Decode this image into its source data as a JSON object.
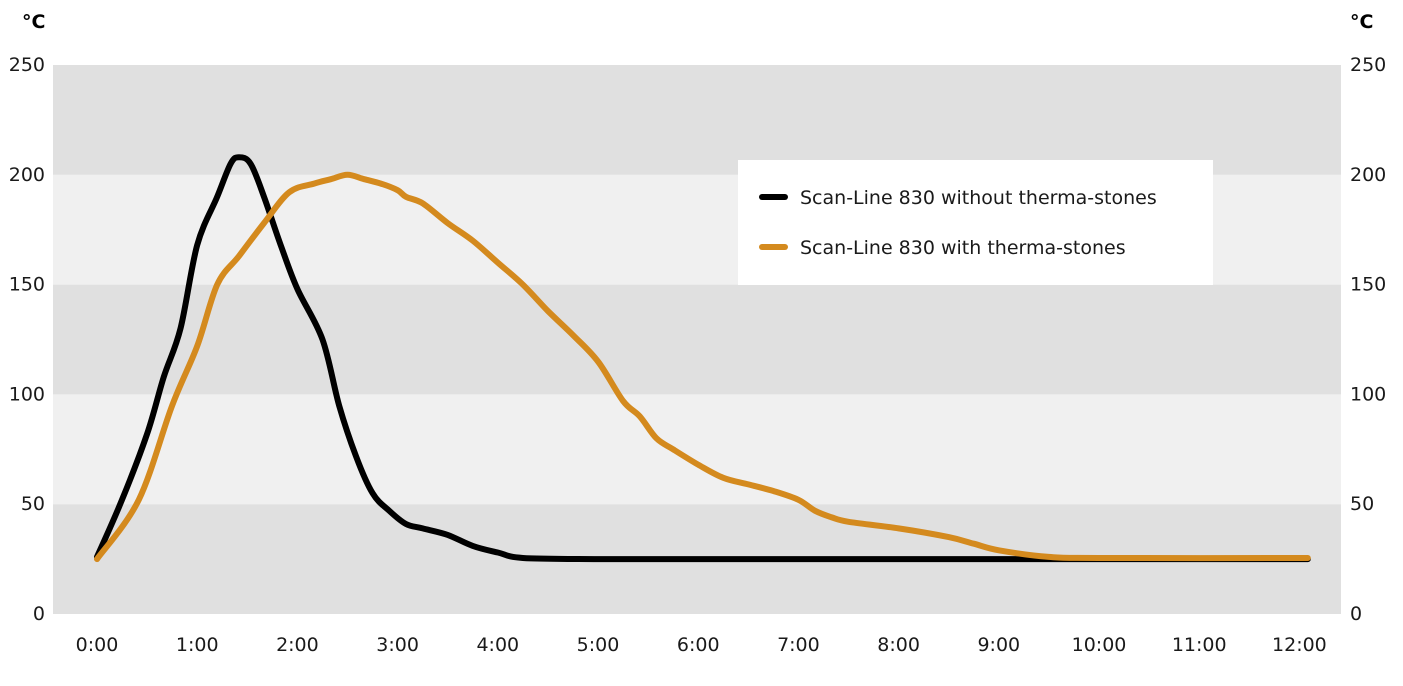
{
  "chart_data": {
    "type": "line",
    "y_unit_left": "°C",
    "y_unit_right": "°C",
    "ylim": [
      0,
      250
    ],
    "y_ticks": [
      "0",
      "50",
      "100",
      "150",
      "200",
      "250"
    ],
    "xlim": [
      "0:00",
      "12:00"
    ],
    "x_ticks": [
      "0:00",
      "1:00",
      "2:00",
      "3:00",
      "4:00",
      "5:00",
      "6:00",
      "7:00",
      "8:00",
      "9:00",
      "10:00",
      "11:00",
      "12:00"
    ],
    "band_colors": [
      "#e0e0e0",
      "#f0f0f0"
    ],
    "legend_position": "top-right",
    "series": [
      {
        "name": "Scan-Line 830 without therma-stones",
        "color": "#000000",
        "points": [
          [
            "0:00",
            26
          ],
          [
            "0:15",
            52
          ],
          [
            "0:30",
            82
          ],
          [
            "0:40",
            108
          ],
          [
            "0:50",
            130
          ],
          [
            "1:00",
            168
          ],
          [
            "1:12",
            190
          ],
          [
            "1:20",
            205
          ],
          [
            "1:25",
            208
          ],
          [
            "1:32",
            205
          ],
          [
            "1:40",
            190
          ],
          [
            "1:50",
            168
          ],
          [
            "2:00",
            148
          ],
          [
            "2:15",
            125
          ],
          [
            "2:25",
            95
          ],
          [
            "2:35",
            72
          ],
          [
            "2:45",
            55
          ],
          [
            "2:55",
            47
          ],
          [
            "3:05",
            41
          ],
          [
            "3:15",
            39
          ],
          [
            "3:30",
            36
          ],
          [
            "3:45",
            31
          ],
          [
            "4:00",
            28
          ],
          [
            "4:15",
            25.5
          ],
          [
            "5:00",
            25
          ],
          [
            "6:00",
            25
          ],
          [
            "8:00",
            25
          ],
          [
            "10:00",
            25
          ],
          [
            "12:05",
            25
          ]
        ]
      },
      {
        "name": "Scan-Line 830 with therma-stones",
        "color": "#d48a1e",
        "points": [
          [
            "0:00",
            25
          ],
          [
            "0:25",
            52
          ],
          [
            "0:45",
            95
          ],
          [
            "1:00",
            122
          ],
          [
            "1:12",
            150
          ],
          [
            "1:25",
            163
          ],
          [
            "1:40",
            178
          ],
          [
            "1:55",
            192
          ],
          [
            "2:10",
            196
          ],
          [
            "2:20",
            198
          ],
          [
            "2:30",
            200
          ],
          [
            "2:40",
            198
          ],
          [
            "2:50",
            196
          ],
          [
            "3:00",
            193
          ],
          [
            "3:05",
            190
          ],
          [
            "3:15",
            187
          ],
          [
            "3:30",
            178
          ],
          [
            "3:45",
            170
          ],
          [
            "4:00",
            160
          ],
          [
            "4:15",
            150
          ],
          [
            "4:30",
            138
          ],
          [
            "4:45",
            127
          ],
          [
            "5:00",
            115
          ],
          [
            "5:15",
            97
          ],
          [
            "5:25",
            90
          ],
          [
            "5:35",
            80
          ],
          [
            "5:45",
            75
          ],
          [
            "6:00",
            68
          ],
          [
            "6:15",
            62
          ],
          [
            "6:30",
            59
          ],
          [
            "6:45",
            56
          ],
          [
            "7:00",
            52
          ],
          [
            "7:10",
            47
          ],
          [
            "7:20",
            44
          ],
          [
            "7:30",
            42
          ],
          [
            "8:00",
            39
          ],
          [
            "8:30",
            35
          ],
          [
            "8:45",
            32
          ],
          [
            "9:00",
            29
          ],
          [
            "9:30",
            26
          ],
          [
            "10:00",
            25.5
          ],
          [
            "12:05",
            25.5
          ]
        ]
      }
    ]
  }
}
